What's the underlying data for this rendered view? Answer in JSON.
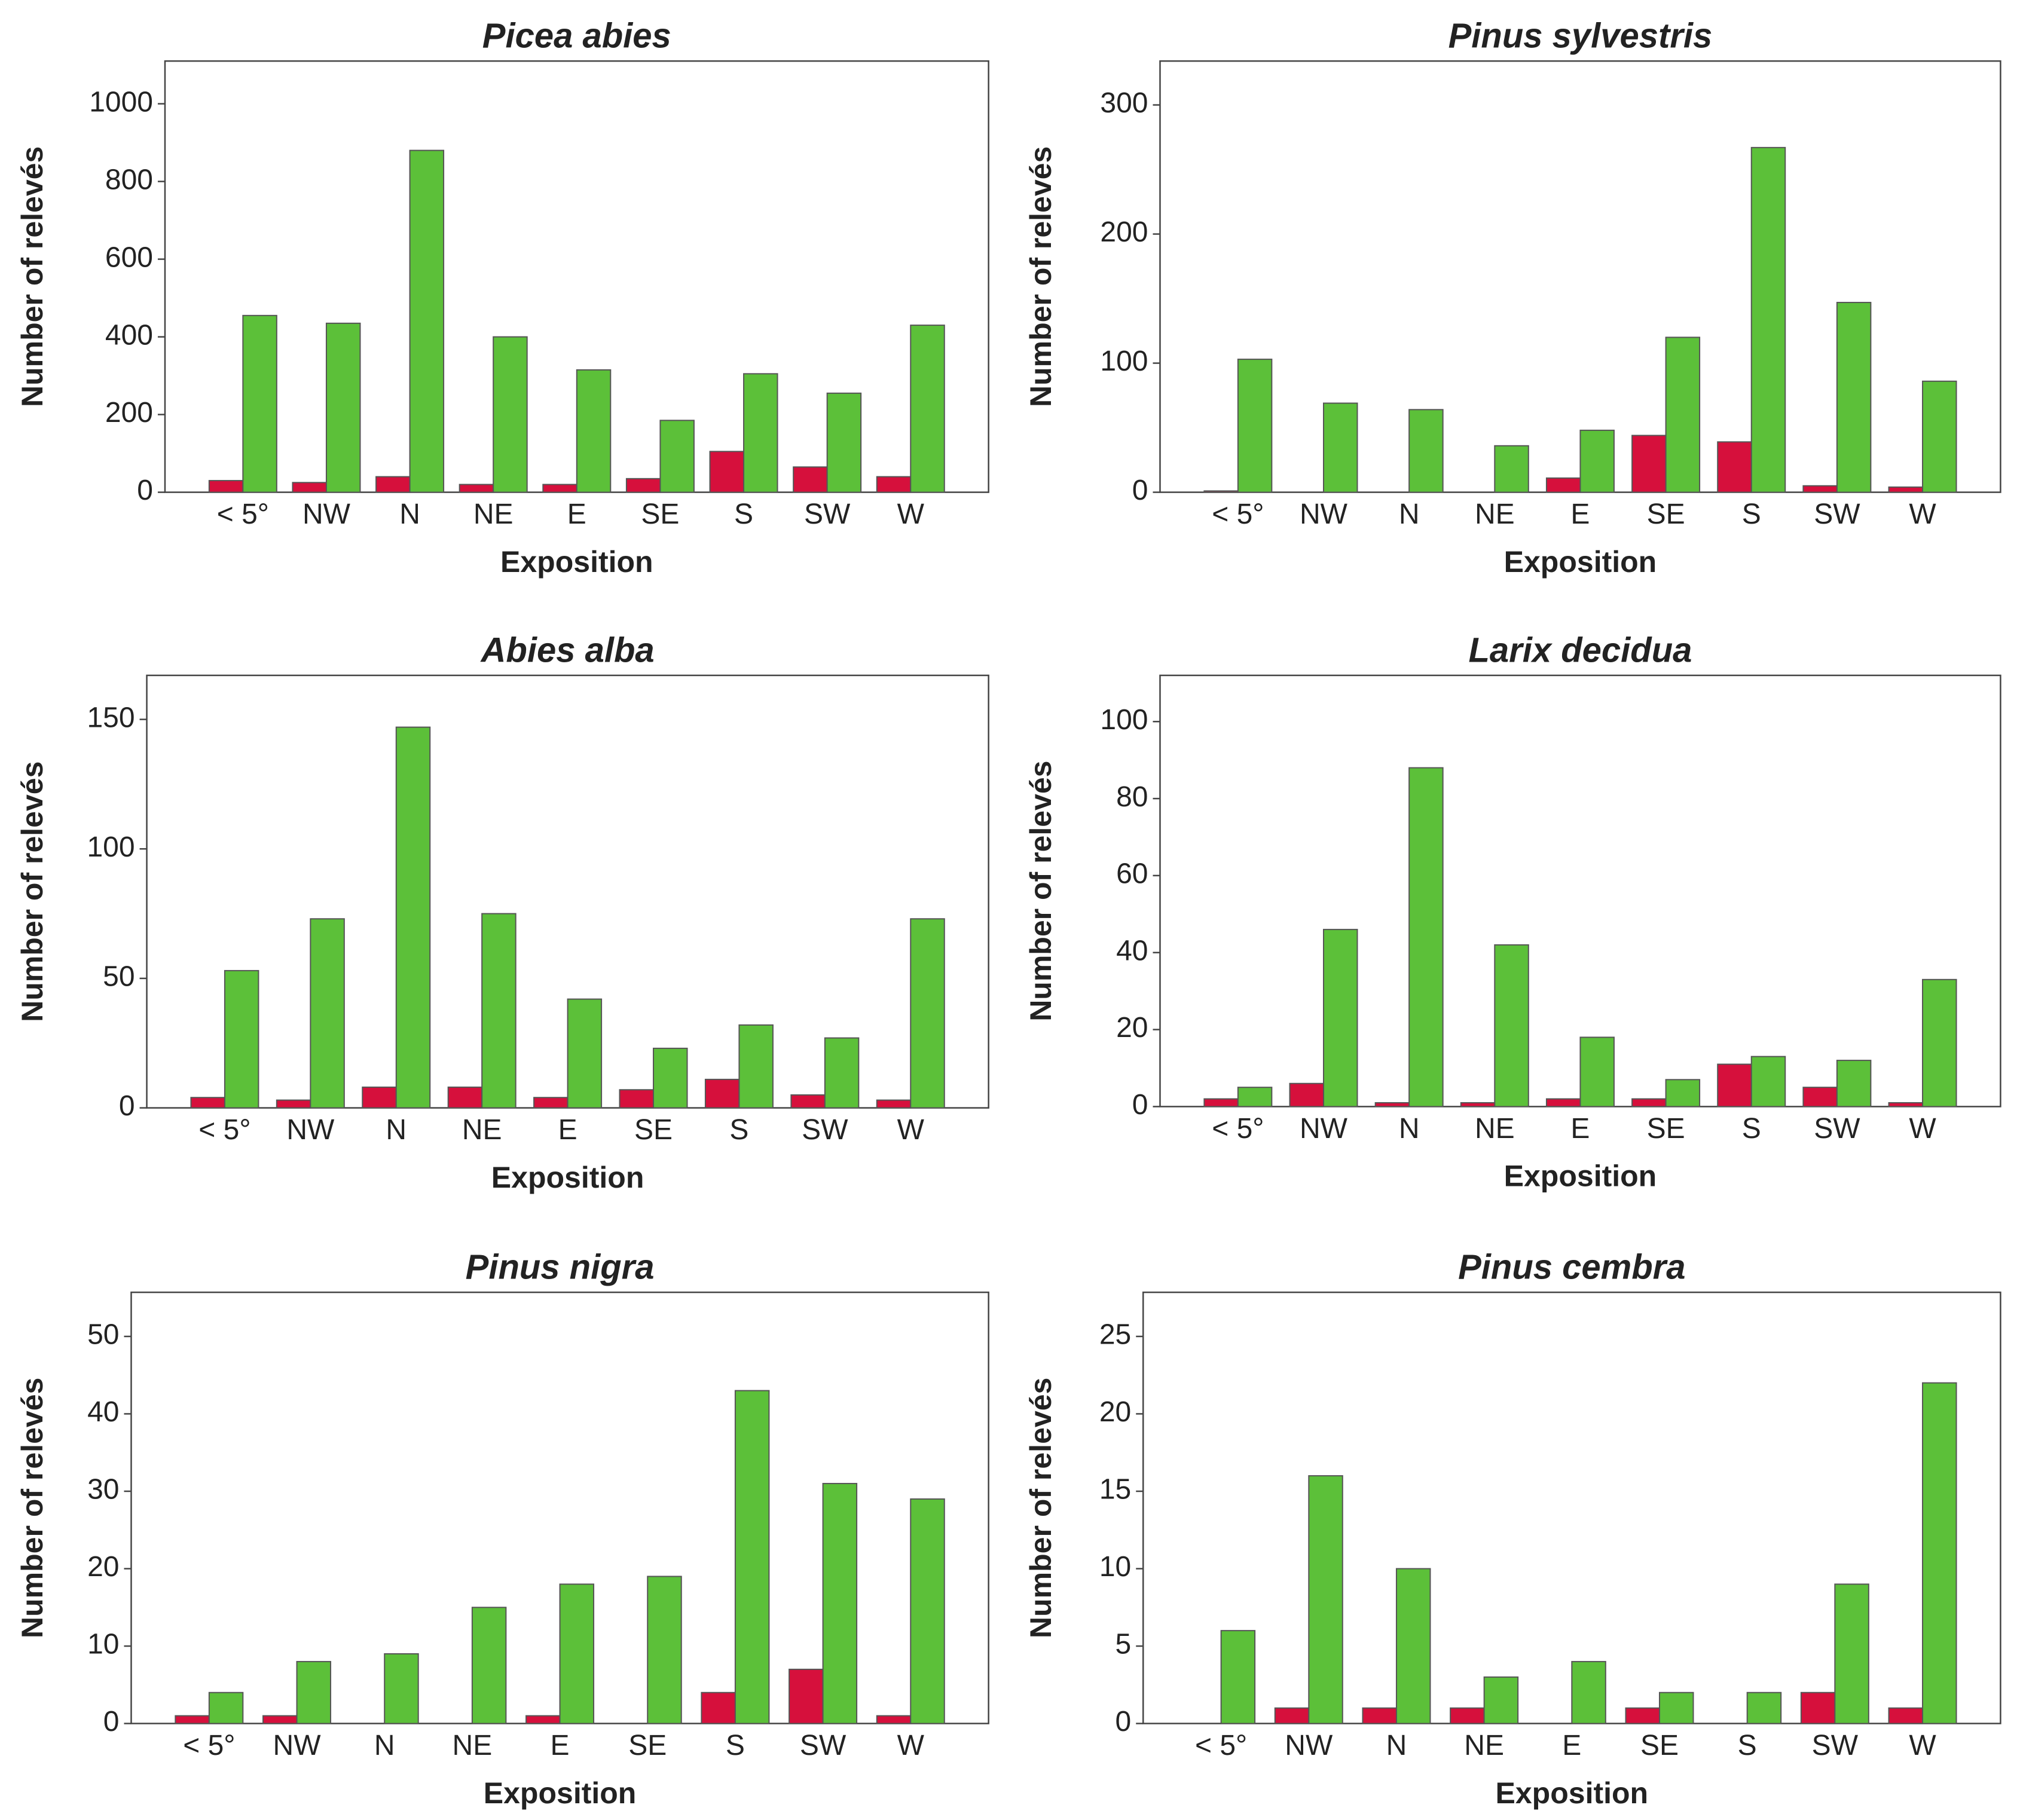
{
  "chart_data": [
    {
      "type": "bar",
      "title": "Picea abies",
      "x_label": "Exposition",
      "y_label": "Number of relevés",
      "categories": [
        "< 5°",
        "NW",
        "N",
        "NE",
        "E",
        "SE",
        "S",
        "SW",
        "W"
      ],
      "series": [
        {
          "color": "#d6103c",
          "values": [
            30,
            25,
            40,
            20,
            20,
            35,
            105,
            65,
            40
          ]
        },
        {
          "color": "#5cc039",
          "values": [
            455,
            435,
            880,
            400,
            315,
            185,
            305,
            255,
            430
          ]
        }
      ],
      "ylim": [
        0,
        1110
      ],
      "yticks": [
        0,
        200,
        400,
        600,
        800,
        1000
      ]
    },
    {
      "type": "bar",
      "title": "Pinus sylvestris",
      "x_label": "Exposition",
      "y_label": "Number of relevés",
      "categories": [
        "< 5°",
        "NW",
        "N",
        "NE",
        "E",
        "SE",
        "S",
        "SW",
        "W"
      ],
      "series": [
        {
          "color": "#d6103c",
          "values": [
            1,
            0,
            0,
            0,
            11,
            44,
            39,
            5,
            4
          ]
        },
        {
          "color": "#5cc039",
          "values": [
            103,
            69,
            64,
            36,
            48,
            120,
            267,
            147,
            86
          ]
        }
      ],
      "ylim": [
        0,
        334
      ],
      "yticks": [
        0,
        100,
        200,
        300
      ]
    },
    {
      "type": "bar",
      "title": "Abies alba",
      "x_label": "Exposition",
      "y_label": "Number of relevés",
      "categories": [
        "< 5°",
        "NW",
        "N",
        "NE",
        "E",
        "SE",
        "S",
        "SW",
        "W"
      ],
      "series": [
        {
          "color": "#d6103c",
          "values": [
            4,
            3,
            8,
            8,
            4,
            7,
            11,
            5,
            3
          ]
        },
        {
          "color": "#5cc039",
          "values": [
            53,
            73,
            147,
            75,
            42,
            23,
            32,
            27,
            73
          ]
        }
      ],
      "ylim": [
        0,
        167
      ],
      "yticks": [
        0,
        50,
        100,
        150
      ]
    },
    {
      "type": "bar",
      "title": "Larix decidua",
      "x_label": "Exposition",
      "y_label": "Number of relevés",
      "categories": [
        "< 5°",
        "NW",
        "N",
        "NE",
        "E",
        "SE",
        "S",
        "SW",
        "W"
      ],
      "series": [
        {
          "color": "#d6103c",
          "values": [
            2,
            6,
            1,
            1,
            2,
            2,
            11,
            5,
            1
          ]
        },
        {
          "color": "#5cc039",
          "values": [
            5,
            46,
            88,
            42,
            18,
            7,
            13,
            12,
            33
          ]
        }
      ],
      "ylim": [
        0,
        112
      ],
      "yticks": [
        0,
        20,
        40,
        60,
        80,
        100
      ]
    },
    {
      "type": "bar",
      "title": "Pinus nigra",
      "x_label": "Exposition",
      "y_label": "Number of relevés",
      "categories": [
        "< 5°",
        "NW",
        "N",
        "NE",
        "E",
        "SE",
        "S",
        "SW",
        "W"
      ],
      "series": [
        {
          "color": "#d6103c",
          "values": [
            1,
            1,
            0,
            0,
            1,
            0,
            4,
            7,
            1
          ]
        },
        {
          "color": "#5cc039",
          "values": [
            4,
            8,
            9,
            15,
            18,
            19,
            43,
            31,
            29
          ]
        }
      ],
      "ylim": [
        0,
        55.7
      ],
      "yticks": [
        0,
        10,
        20,
        30,
        40,
        50
      ]
    },
    {
      "type": "bar",
      "title": "Pinus cembra",
      "x_label": "Exposition",
      "y_label": "Number of relevés",
      "categories": [
        "< 5°",
        "NW",
        "N",
        "NE",
        "E",
        "SE",
        "S",
        "SW",
        "W"
      ],
      "series": [
        {
          "color": "#d6103c",
          "values": [
            0,
            1,
            1,
            1,
            0,
            1,
            0,
            2,
            1
          ]
        },
        {
          "color": "#5cc039",
          "values": [
            6,
            16,
            10,
            3,
            4,
            2,
            2,
            9,
            22
          ]
        }
      ],
      "ylim": [
        0,
        27.85
      ],
      "yticks": [
        0,
        5,
        10,
        15,
        20,
        25
      ]
    }
  ]
}
